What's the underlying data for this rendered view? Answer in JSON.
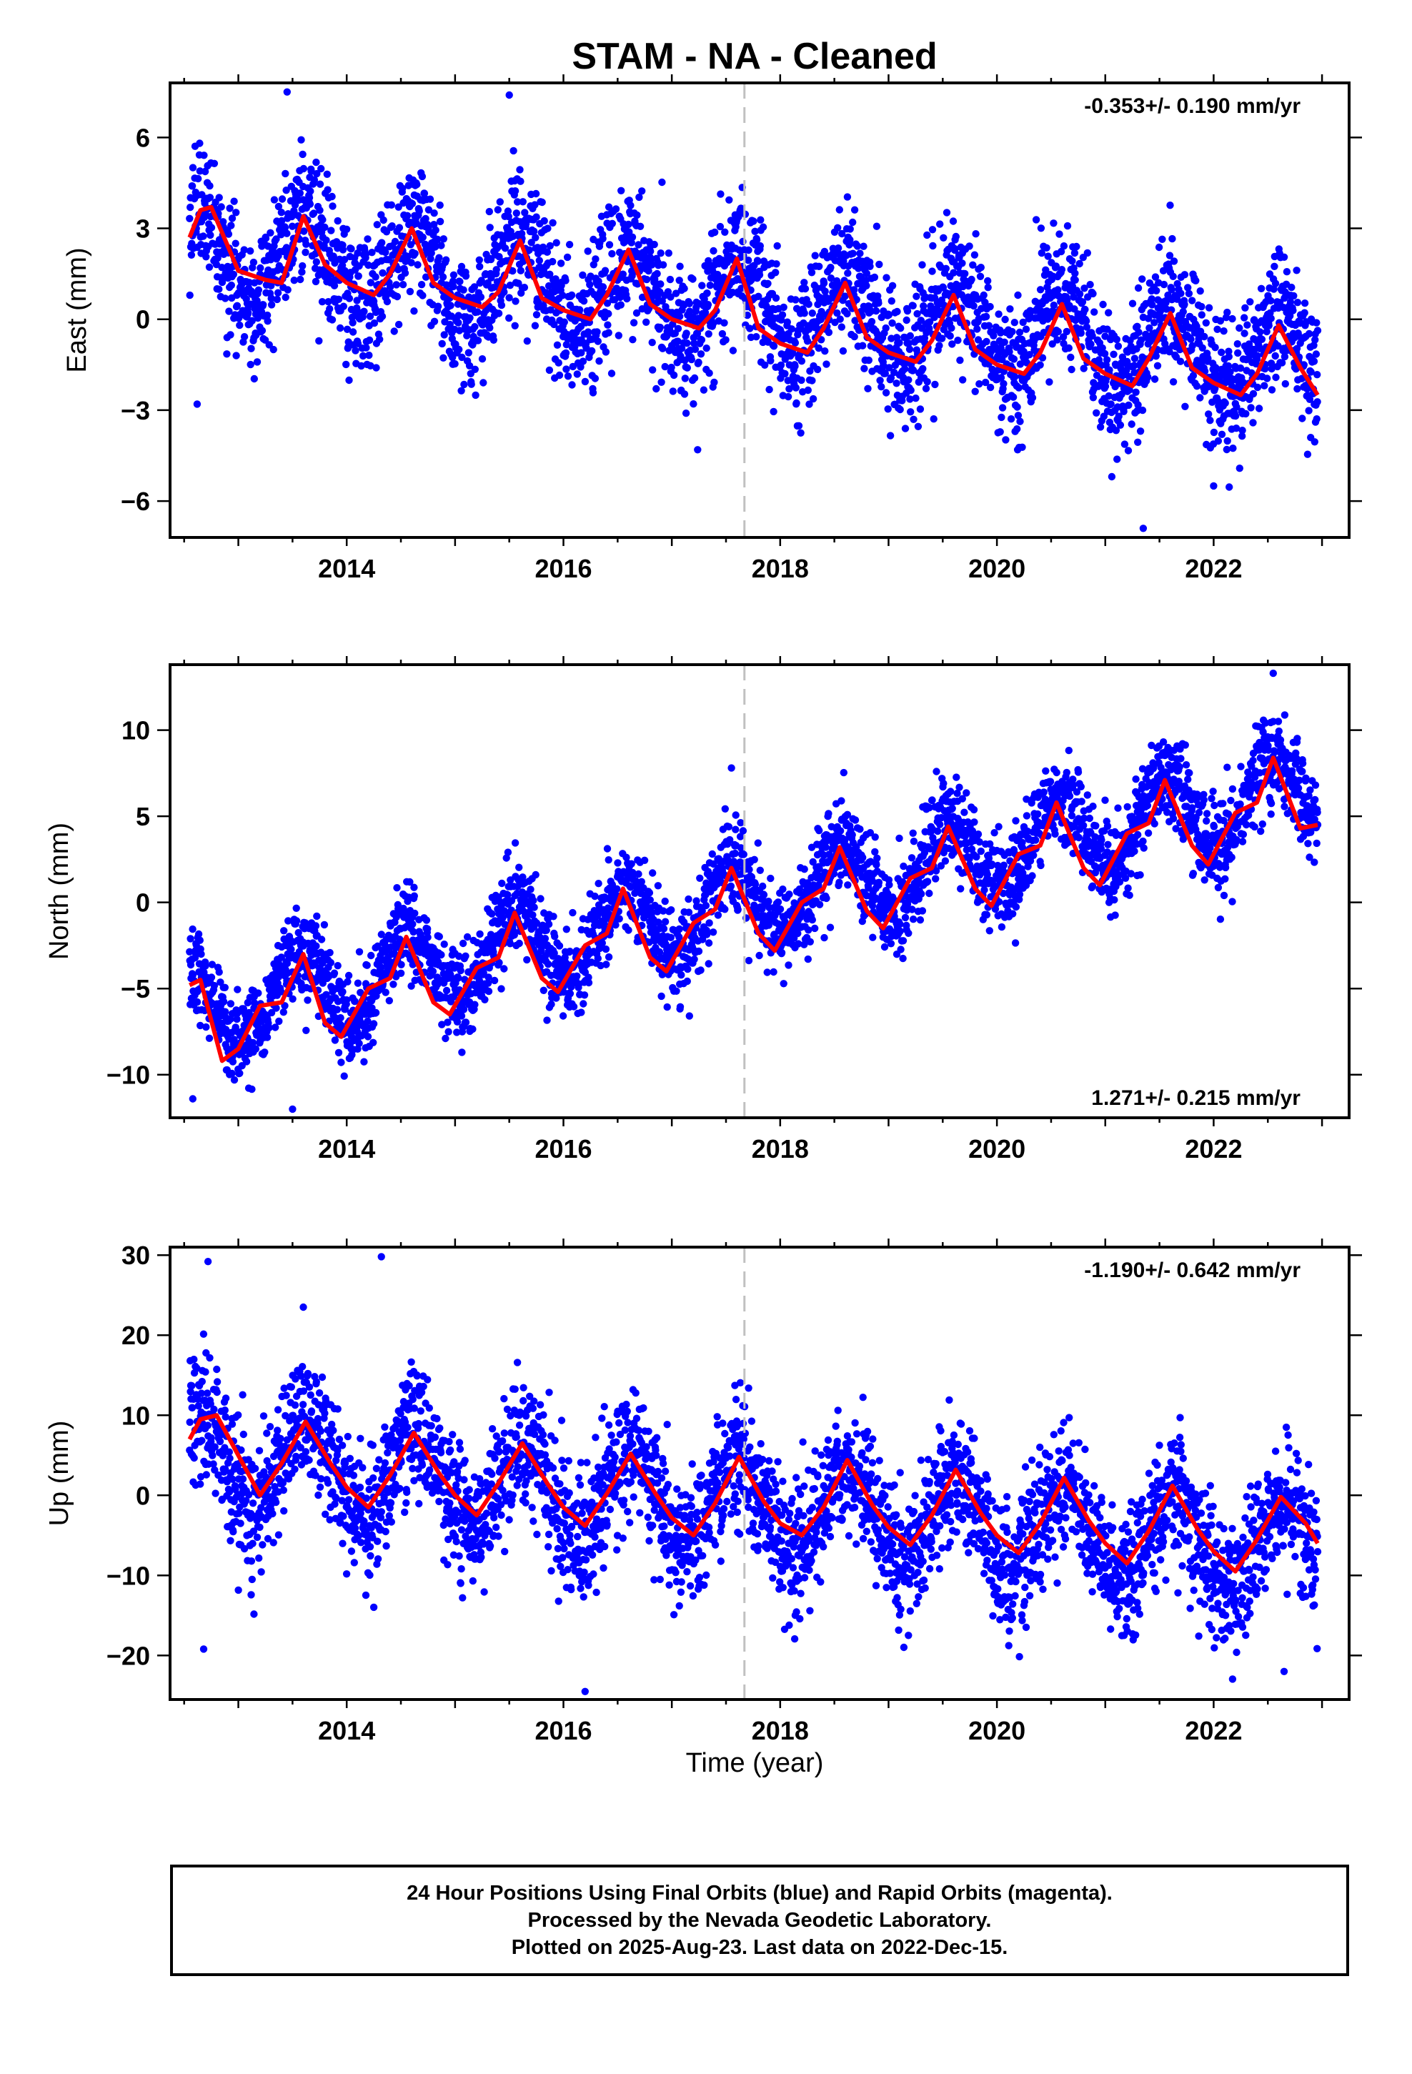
{
  "title": "STAM  - NA - Cleaned",
  "xlabel": "Time (year)",
  "footer": {
    "line1": "24 Hour Positions Using Final Orbits (blue) and Rapid Orbits (magenta).",
    "line2": "Processed by the Nevada Geodetic Laboratory.",
    "line3": "Plotted on 2025-Aug-23. Last data on 2022-Dec-15."
  },
  "colors": {
    "data": "#0000ff",
    "fit": "#ff0000",
    "event_line": "#c0c0c0"
  },
  "chart_data": [
    {
      "type": "scatter",
      "name": "east",
      "ylabel": "East (mm)",
      "rate_text": "-0.353+/- 0.190 mm/yr",
      "rate_placement": "top-right",
      "xlim": [
        2012.37,
        2023.25
      ],
      "ylim": [
        -7.2,
        7.8
      ],
      "x_ticks": [
        2014,
        2016,
        2018,
        2020,
        2022
      ],
      "x_tick_labels": [
        "2014",
        "2016",
        "2018",
        "2020",
        "2022"
      ],
      "y_ticks": [
        -6,
        -3,
        0,
        3,
        6
      ],
      "y_tick_labels": [
        "−6",
        "−3",
        "0",
        "3",
        "6"
      ],
      "event_line_x": 2017.67,
      "series": [
        {
          "kind": "daily_positions",
          "x_start": 2012.55,
          "x_end": 2022.96,
          "n_points": 3700,
          "trend_intercept_at_start": 2.3,
          "trend_rate": -0.353,
          "annual_amplitude": 1.4,
          "peak_fraction_of_year": 0.62,
          "scatter_sd": 1.1,
          "outliers": [
            [
              2021.35,
              -6.9
            ],
            [
              2022.0,
              -5.5
            ],
            [
              2012.62,
              -2.8
            ],
            [
              2013.45,
              7.5
            ],
            [
              2015.5,
              7.4
            ]
          ]
        },
        {
          "kind": "fitted_model",
          "x": [
            2012.55,
            2012.65,
            2012.75,
            2013.0,
            2013.25,
            2013.4,
            2013.6,
            2013.8,
            2014.0,
            2014.25,
            2014.4,
            2014.6,
            2014.8,
            2015.0,
            2015.25,
            2015.4,
            2015.6,
            2015.8,
            2016.0,
            2016.25,
            2016.4,
            2016.6,
            2016.8,
            2017.0,
            2017.25,
            2017.4,
            2017.6,
            2017.8,
            2018.0,
            2018.25,
            2018.4,
            2018.6,
            2018.8,
            2019.0,
            2019.25,
            2019.4,
            2019.6,
            2019.8,
            2020.0,
            2020.25,
            2020.4,
            2020.6,
            2020.8,
            2021.0,
            2021.25,
            2021.4,
            2021.6,
            2021.8,
            2022.0,
            2022.25,
            2022.4,
            2022.6,
            2022.8,
            2022.96
          ],
          "y": [
            2.7,
            3.6,
            3.7,
            1.6,
            1.3,
            1.2,
            3.4,
            1.8,
            1.2,
            0.8,
            1.5,
            3.0,
            1.2,
            0.7,
            0.4,
            0.9,
            2.6,
            0.7,
            0.3,
            0.0,
            0.8,
            2.3,
            0.5,
            0.0,
            -0.3,
            0.3,
            2.0,
            -0.3,
            -0.8,
            -1.1,
            -0.3,
            1.2,
            -0.6,
            -1.1,
            -1.4,
            -0.7,
            0.8,
            -1.0,
            -1.5,
            -1.8,
            -1.1,
            0.5,
            -1.3,
            -1.8,
            -2.2,
            -1.3,
            0.2,
            -1.6,
            -2.1,
            -2.5,
            -1.8,
            -0.2,
            -1.6,
            -2.5
          ]
        }
      ]
    },
    {
      "type": "scatter",
      "name": "north",
      "ylabel": "North (mm)",
      "rate_text": "1.271+/- 0.215 mm/yr",
      "rate_placement": "bottom-right",
      "xlim": [
        2012.37,
        2023.25
      ],
      "ylim": [
        -12.5,
        13.8
      ],
      "x_ticks": [
        2014,
        2016,
        2018,
        2020,
        2022
      ],
      "x_tick_labels": [
        "2014",
        "2016",
        "2018",
        "2020",
        "2022"
      ],
      "y_ticks": [
        -10,
        -5,
        0,
        5,
        10
      ],
      "y_tick_labels": [
        "−10",
        "−5",
        "0",
        "5",
        "10"
      ],
      "event_line_x": 2017.67,
      "series": [
        {
          "kind": "daily_positions",
          "x_start": 2012.55,
          "x_end": 2022.96,
          "n_points": 3700,
          "trend_intercept_at_start": -6.5,
          "trend_rate": 1.271,
          "annual_amplitude": 2.3,
          "peak_fraction_of_year": 0.55,
          "scatter_sd": 1.3,
          "outliers": [
            [
              2013.5,
              -12.0
            ],
            [
              2012.58,
              -11.4
            ],
            [
              2022.55,
              13.3
            ],
            [
              2017.55,
              7.8
            ]
          ]
        },
        {
          "kind": "fitted_model",
          "x": [
            2012.55,
            2012.65,
            2012.85,
            2013.0,
            2013.2,
            2013.4,
            2013.6,
            2013.8,
            2013.95,
            2014.2,
            2014.4,
            2014.55,
            2014.8,
            2014.95,
            2015.2,
            2015.4,
            2015.55,
            2015.8,
            2015.95,
            2016.2,
            2016.4,
            2016.55,
            2016.8,
            2016.95,
            2017.2,
            2017.4,
            2017.55,
            2017.8,
            2017.95,
            2018.2,
            2018.4,
            2018.55,
            2018.8,
            2018.95,
            2019.2,
            2019.4,
            2019.55,
            2019.8,
            2019.95,
            2020.2,
            2020.4,
            2020.55,
            2020.8,
            2020.95,
            2021.2,
            2021.4,
            2021.55,
            2021.8,
            2021.95,
            2022.2,
            2022.4,
            2022.55,
            2022.8,
            2022.96
          ],
          "y": [
            -4.8,
            -4.5,
            -9.2,
            -8.5,
            -6.0,
            -5.8,
            -3.0,
            -7.0,
            -7.8,
            -5.0,
            -4.4,
            -2.0,
            -5.8,
            -6.5,
            -3.8,
            -3.2,
            -0.6,
            -4.4,
            -5.2,
            -2.5,
            -1.8,
            0.8,
            -3.2,
            -4.0,
            -1.2,
            -0.4,
            2.0,
            -1.8,
            -2.8,
            0.0,
            0.8,
            3.2,
            -0.5,
            -1.5,
            1.4,
            2.0,
            4.4,
            0.8,
            -0.2,
            2.8,
            3.3,
            5.8,
            2.0,
            1.0,
            4.0,
            4.6,
            7.1,
            3.3,
            2.2,
            5.2,
            5.8,
            8.4,
            4.3,
            4.5
          ]
        }
      ]
    },
    {
      "type": "scatter",
      "name": "up",
      "ylabel": "Up (mm)",
      "rate_text": "-1.190+/- 0.642 mm/yr",
      "rate_placement": "top-right",
      "xlim": [
        2012.37,
        2023.25
      ],
      "ylim": [
        -25.5,
        31
      ],
      "x_ticks": [
        2014,
        2016,
        2018,
        2020,
        2022
      ],
      "x_tick_labels": [
        "2014",
        "2016",
        "2018",
        "2020",
        "2022"
      ],
      "y_ticks": [
        -20,
        -10,
        0,
        10,
        20,
        30
      ],
      "y_tick_labels": [
        "−20",
        "−10",
        "0",
        "10",
        "20",
        "30"
      ],
      "event_line_x": 2017.67,
      "series": [
        {
          "kind": "daily_positions",
          "x_start": 2012.55,
          "x_end": 2022.96,
          "n_points": 3700,
          "trend_intercept_at_start": 5.0,
          "trend_rate": -1.19,
          "annual_amplitude": 5.5,
          "peak_fraction_of_year": 0.63,
          "scatter_sd": 4.0,
          "outliers": [
            [
              2014.32,
              29.8
            ],
            [
              2012.72,
              29.2
            ],
            [
              2012.68,
              -19.2
            ],
            [
              2016.2,
              -24.5
            ],
            [
              2022.65,
              -22.0
            ],
            [
              2013.6,
              23.5
            ]
          ]
        },
        {
          "kind": "fitted_model",
          "x": [
            2012.55,
            2012.65,
            2012.8,
            2013.0,
            2013.2,
            2013.4,
            2013.62,
            2013.85,
            2014.0,
            2014.2,
            2014.4,
            2014.62,
            2014.85,
            2015.0,
            2015.2,
            2015.4,
            2015.62,
            2015.85,
            2016.0,
            2016.2,
            2016.4,
            2016.62,
            2016.85,
            2017.0,
            2017.2,
            2017.4,
            2017.62,
            2017.85,
            2018.0,
            2018.2,
            2018.4,
            2018.62,
            2018.85,
            2019.0,
            2019.2,
            2019.4,
            2019.62,
            2019.85,
            2020.0,
            2020.2,
            2020.4,
            2020.62,
            2020.85,
            2021.0,
            2021.2,
            2021.4,
            2021.62,
            2021.85,
            2022.0,
            2022.2,
            2022.4,
            2022.62,
            2022.85,
            2022.96
          ],
          "y": [
            7.0,
            9.5,
            10.0,
            5.0,
            0.0,
            4.0,
            9.2,
            4.0,
            1.0,
            -1.5,
            2.5,
            7.8,
            2.8,
            0.0,
            -2.5,
            1.5,
            6.5,
            1.5,
            -1.5,
            -3.8,
            0.2,
            5.2,
            0.2,
            -2.8,
            -5.0,
            -1.0,
            4.8,
            -0.8,
            -3.5,
            -5.0,
            -1.5,
            4.4,
            -1.2,
            -4.0,
            -6.2,
            -2.5,
            3.2,
            -2.2,
            -5.0,
            -7.2,
            -3.5,
            2.2,
            -3.2,
            -6.0,
            -8.5,
            -4.5,
            1.2,
            -4.2,
            -7.0,
            -9.5,
            -5.5,
            -0.2,
            -3.5,
            -6.0
          ]
        }
      ]
    }
  ]
}
